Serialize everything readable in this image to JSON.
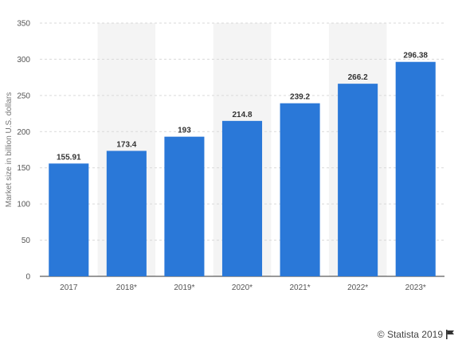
{
  "chart_data": {
    "type": "bar",
    "categories": [
      "2017",
      "2018*",
      "2019*",
      "2020*",
      "2021*",
      "2022*",
      "2023*"
    ],
    "values": [
      155.91,
      173.4,
      193,
      214.8,
      239.2,
      266.2,
      296.38
    ],
    "value_labels": [
      "155.91",
      "173.4",
      "193",
      "214.8",
      "239.2",
      "266.2",
      "296.38"
    ],
    "ylabel": "Market size in billion U.S. dollars",
    "ylim": [
      0,
      350
    ],
    "yticks": [
      0,
      50,
      100,
      150,
      200,
      250,
      300,
      350
    ],
    "bar_color": "#2a78d8",
    "shaded_band_color": "#f4f4f4",
    "grid": true
  },
  "credit": {
    "text": "© Statista 2019",
    "icon": "flag-icon"
  }
}
